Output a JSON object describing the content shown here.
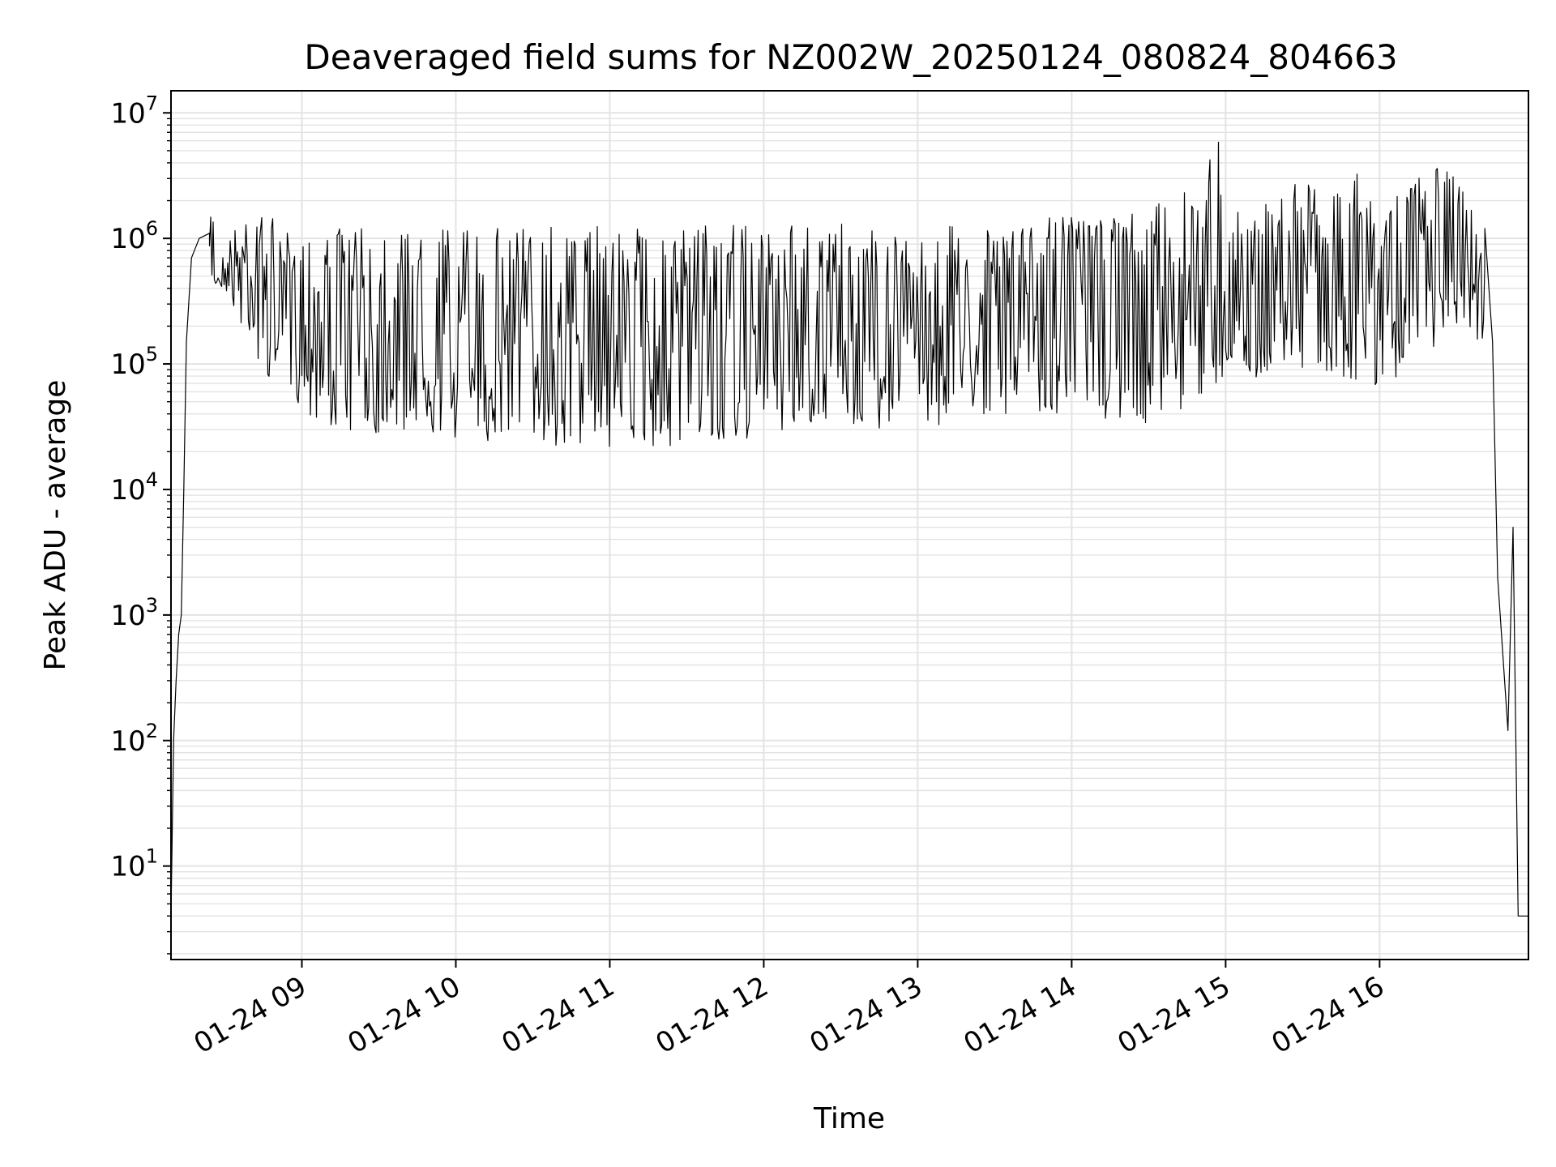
{
  "chart_data": {
    "type": "line",
    "title": "Deaveraged field sums for NZ002W_20250124_080824_804663",
    "xlabel": "Time",
    "ylabel": "Peak ADU - average",
    "yscale": "log",
    "ylim": [
      1.8,
      15000000
    ],
    "xlim": [
      "2025-01-24T08:09",
      "2025-01-24T16:58"
    ],
    "grid": true,
    "line_color": "#000000",
    "grid_color": "#e3e3e3",
    "x_ticks": [
      "01-24 09",
      "01-24 10",
      "01-24 11",
      "01-24 12",
      "01-24 13",
      "01-24 14",
      "01-24 15",
      "01-24 16"
    ],
    "y_ticks": [
      {
        "value": 10,
        "base": "10",
        "exp": "1"
      },
      {
        "value": 100,
        "base": "10",
        "exp": "2"
      },
      {
        "value": 1000,
        "base": "10",
        "exp": "3"
      },
      {
        "value": 10000,
        "base": "10",
        "exp": "4"
      },
      {
        "value": 100000,
        "base": "10",
        "exp": "5"
      },
      {
        "value": 1000000,
        "base": "10",
        "exp": "6"
      },
      {
        "value": 10000000,
        "base": "10",
        "exp": "7"
      }
    ],
    "series": [
      {
        "points": [
          [
            "2025-01-24T08:09",
            40000
          ],
          [
            "2025-01-24T08:09",
            4
          ],
          [
            "2025-01-24T08:10",
            100
          ],
          [
            "2025-01-24T08:11",
            300
          ],
          [
            "2025-01-24T08:12",
            700
          ],
          [
            "2025-01-24T08:13",
            1000
          ],
          [
            "2025-01-24T08:14",
            10000
          ],
          [
            "2025-01-24T08:15",
            150000
          ],
          [
            "2025-01-24T08:17",
            700000
          ],
          [
            "2025-01-24T08:20",
            1000000
          ],
          [
            "2025-01-24T08:24",
            1100000
          ],
          [
            "2025-01-24T08:25",
            2400000
          ],
          [
            "2025-01-24T08:27",
            600000
          ],
          [
            "2025-01-24T08:37",
            1800000
          ],
          [
            "2025-01-24T08:46",
            1500000
          ],
          [
            "2025-01-24T09:00",
            1200000
          ],
          [
            "2025-01-24T09:30",
            1200000
          ],
          [
            "2025-01-24T10:00",
            1200000
          ],
          [
            "2025-01-24T10:30",
            1250000
          ],
          [
            "2025-01-24T11:00",
            1300000
          ],
          [
            "2025-01-24T11:30",
            1300000
          ],
          [
            "2025-01-24T12:00",
            1300000
          ],
          [
            "2025-01-24T12:30",
            1350000
          ],
          [
            "2025-01-24T13:00",
            1400000
          ],
          [
            "2025-01-24T13:30",
            1400000
          ],
          [
            "2025-01-24T14:00",
            1500000
          ],
          [
            "2025-01-24T14:30",
            1600000
          ],
          [
            "2025-01-24T14:59",
            7000000
          ],
          [
            "2025-01-24T15:00",
            1500000
          ],
          [
            "2025-01-24T15:24",
            2500000
          ],
          [
            "2025-01-24T15:47",
            4500000
          ],
          [
            "2025-01-24T16:00",
            1800000
          ],
          [
            "2025-01-24T16:21",
            4000000
          ],
          [
            "2025-01-24T16:36",
            3000000
          ],
          [
            "2025-01-24T16:41",
            1200000
          ],
          [
            "2025-01-24T16:44",
            150000
          ],
          [
            "2025-01-24T16:46",
            2000
          ],
          [
            "2025-01-24T16:50",
            120
          ],
          [
            "2025-01-24T16:52",
            5000
          ],
          [
            "2025-01-24T16:54",
            4
          ],
          [
            "2025-01-24T16:58",
            4
          ]
        ],
        "minima": [
          [
            "2025-01-24T08:30",
            400000
          ],
          [
            "2025-01-24T08:45",
            80000
          ],
          [
            "2025-01-24T09:10",
            30000
          ],
          [
            "2025-01-24T10:00",
            25000
          ],
          [
            "2025-01-24T10:30",
            22000
          ],
          [
            "2025-01-24T11:00",
            22000
          ],
          [
            "2025-01-24T11:40",
            19000
          ],
          [
            "2025-01-24T12:00",
            28000
          ],
          [
            "2025-01-24T12:30",
            30000
          ],
          [
            "2025-01-24T13:00",
            30000
          ],
          [
            "2025-01-24T13:30",
            40000
          ],
          [
            "2025-01-24T14:00",
            40000
          ],
          [
            "2025-01-24T14:30",
            30000
          ],
          [
            "2025-01-24T15:00",
            70000
          ],
          [
            "2025-01-24T15:30",
            90000
          ],
          [
            "2025-01-24T16:00",
            60000
          ],
          [
            "2025-01-24T16:30",
            150000
          ]
        ]
      }
    ]
  }
}
